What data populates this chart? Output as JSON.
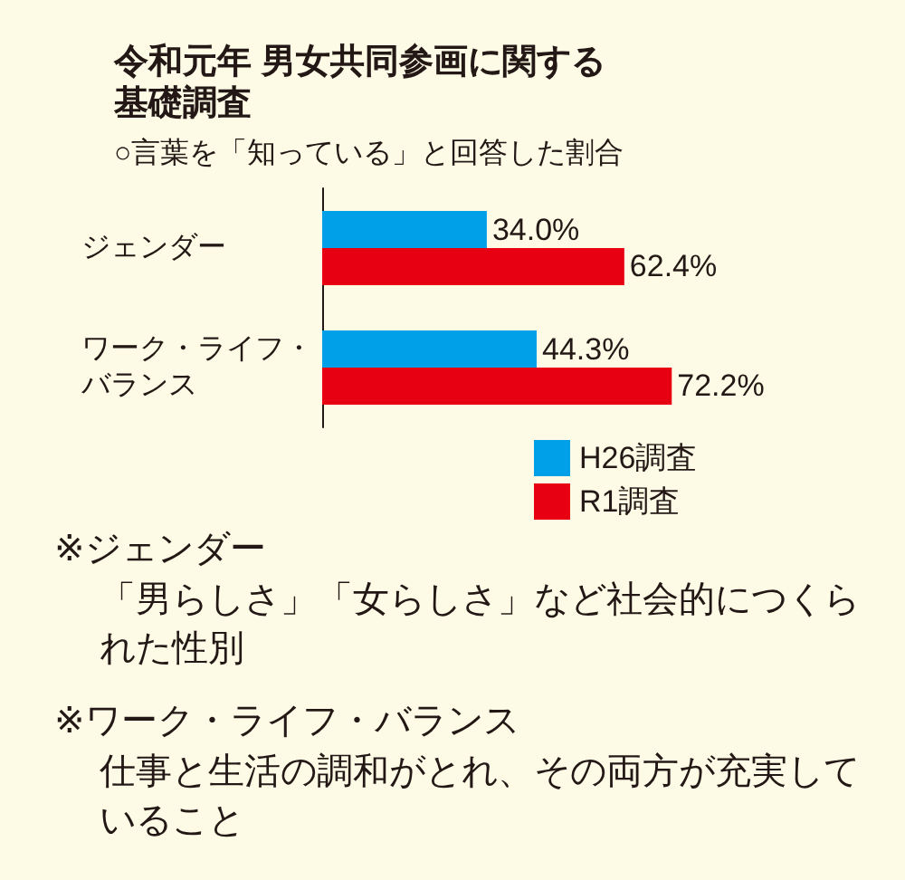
{
  "chart_data": {
    "type": "bar",
    "orientation": "horizontal",
    "title": "令和元年 男女共同参画に関する基礎調査",
    "subtitle": "○言葉を「知っている」と回答した割合",
    "categories": [
      "ジェンダー",
      "ワーク・ライフ・バランス"
    ],
    "series": [
      {
        "name": "H26調査",
        "color": "#00a0e9",
        "values": [
          34.0,
          44.3
        ],
        "value_labels": [
          "34.0%",
          "44.3%"
        ]
      },
      {
        "name": "R1調査",
        "color": "#e60012",
        "values": [
          62.4,
          72.2
        ],
        "value_labels": [
          "62.4%",
          "72.2%"
        ]
      }
    ],
    "tick_labels": "y",
    "grid": false,
    "legend": "bottom right",
    "annotations": [
      "※ジェンダー",
      "「男らしさ」「女らしさ」など社会的につくられた性別",
      "※ワーク・ライフ・バランス",
      "仕事と生活の調和がとれ、その両方が充実していること"
    ]
  }
}
